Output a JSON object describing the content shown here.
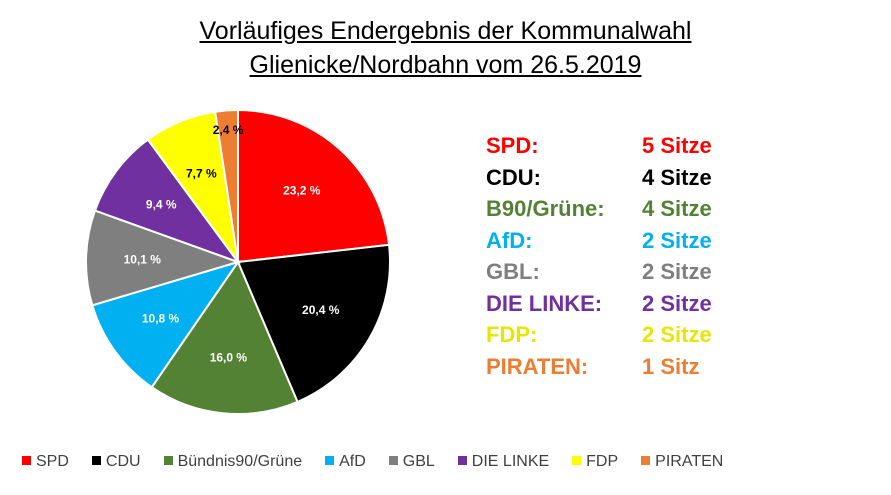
{
  "chart_data": {
    "type": "pie",
    "title": "Vorläufiges Endergebnis der Kommunalwahl",
    "subtitle": "Glienicke/Nordbahn vom 26.5.2019",
    "slices": [
      {
        "category": "SPD",
        "value": 23.2,
        "label": "23,2 %",
        "color": "#ff0000",
        "label_color": "#ffffff"
      },
      {
        "category": "CDU",
        "value": 20.4,
        "label": "20,4 %",
        "color": "#000000",
        "label_color": "#ffffff"
      },
      {
        "category": "Bündnis90/Grüne",
        "value": 16.0,
        "label": "16,0 %",
        "color": "#548235",
        "label_color": "#ffffff"
      },
      {
        "category": "AfD",
        "value": 10.8,
        "label": "10,8 %",
        "color": "#00b0f0",
        "label_color": "#ffffff"
      },
      {
        "category": "GBL",
        "value": 10.1,
        "label": "10,1 %",
        "color": "#7f7f7f",
        "label_color": "#ffffff"
      },
      {
        "category": "DIE LINKE",
        "value": 9.4,
        "label": "9,4 %",
        "color": "#7030a0",
        "label_color": "#ffffff"
      },
      {
        "category": "FDP",
        "value": 7.7,
        "label": "7,7 %",
        "color": "#ffff00",
        "label_color": "#000000"
      },
      {
        "category": "PIRATEN",
        "value": 2.4,
        "label": "2,4 %",
        "color": "#ed7d31",
        "label_color": "#000000"
      }
    ],
    "legend_position": "bottom"
  },
  "seats": [
    {
      "party": "SPD:",
      "seats": "5 Sitze",
      "color": "#ff0000"
    },
    {
      "party": "CDU:",
      "seats": "4 Sitze",
      "color": "#000000"
    },
    {
      "party": "B90/Grüne:",
      "seats": "4 Sitze",
      "color": "#548235"
    },
    {
      "party": "AfD:",
      "seats": "2 Sitze",
      "color": "#00b0f0"
    },
    {
      "party": "GBL:",
      "seats": "2 Sitze",
      "color": "#7f7f7f"
    },
    {
      "party": "DIE LINKE:",
      "seats": "2 Sitze",
      "color": "#7030a0"
    },
    {
      "party": "FDP:",
      "seats": "2 Sitze",
      "color": "#e6e600"
    },
    {
      "party": "PIRATEN:",
      "seats": "1 Sitz",
      "color": "#ed7d31"
    }
  ]
}
